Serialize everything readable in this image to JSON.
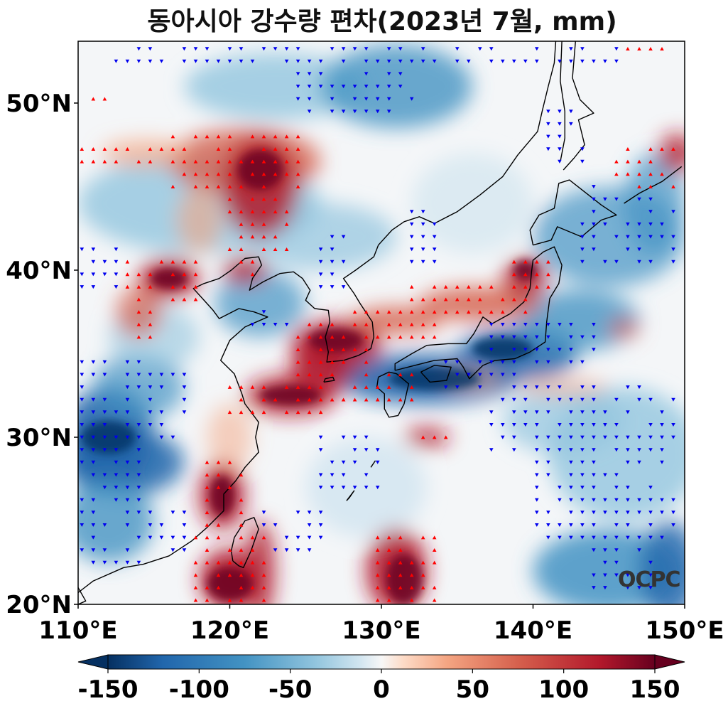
{
  "title": "동아시아 강수량 편차(2023년 7월, mm)",
  "map": {
    "lon_range": [
      110,
      150
    ],
    "lat_range": [
      20,
      53.7
    ],
    "x_ticks": [
      "110°E",
      "120°E",
      "130°E",
      "140°E",
      "150°E"
    ],
    "x_tick_values": [
      110,
      120,
      130,
      140,
      150
    ],
    "y_ticks": [
      "20°N",
      "30°N",
      "40°N",
      "50°N"
    ],
    "y_tick_values": [
      20,
      30,
      40,
      50
    ],
    "field": "precipitation anomaly",
    "positive_marker_color": "#ff0000",
    "negative_marker_color": "#0000ee",
    "coastline_color": "#000000"
  },
  "colorbar": {
    "colormap": "RdBu_r",
    "min": -150,
    "max": 150,
    "ticks": [
      "-150",
      "-100",
      "-50",
      "0",
      "50",
      "100",
      "150"
    ],
    "tick_values": [
      -150,
      -100,
      -50,
      0,
      50,
      100,
      150
    ],
    "extend": "both",
    "low_color": "#053061",
    "mid_color": "#f7f7f7",
    "high_color": "#67001f"
  },
  "logo": "OCPC"
}
